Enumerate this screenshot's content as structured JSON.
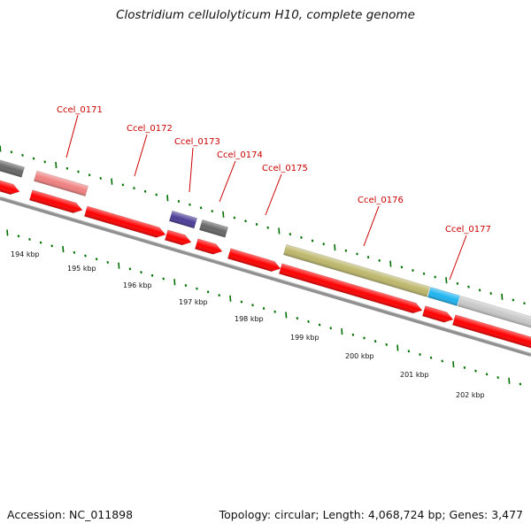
{
  "title": "Clostridium cellulolyticum H10, complete genome",
  "footer": {
    "accession": "Accession: NC_011898",
    "summary": "Topology: circular; Length: 4,068,724 bp; Genes: 3,477"
  },
  "colors": {
    "cds_red": "#ff0000",
    "dark_grey": "#666666",
    "light_grey": "#c8c8c8",
    "pink": "#f08080",
    "purple": "#4b3c96",
    "olive": "#bdb76b",
    "cyan": "#1eb4f0",
    "backbone": "#888888",
    "tick_green": "#007000",
    "label_red": "#cc0000"
  },
  "gene_labels": [
    "Ccel_0171",
    "Ccel_0172",
    "Ccel_0173",
    "Ccel_0174",
    "Ccel_0175",
    "Ccel_0176",
    "Ccel_0177"
  ],
  "kbp_labels": [
    "194 kbp",
    "195 kbp",
    "196 kbp",
    "197 kbp",
    "198 kbp",
    "199 kbp",
    "200 kbp",
    "201 kbp",
    "202 kbp"
  ]
}
